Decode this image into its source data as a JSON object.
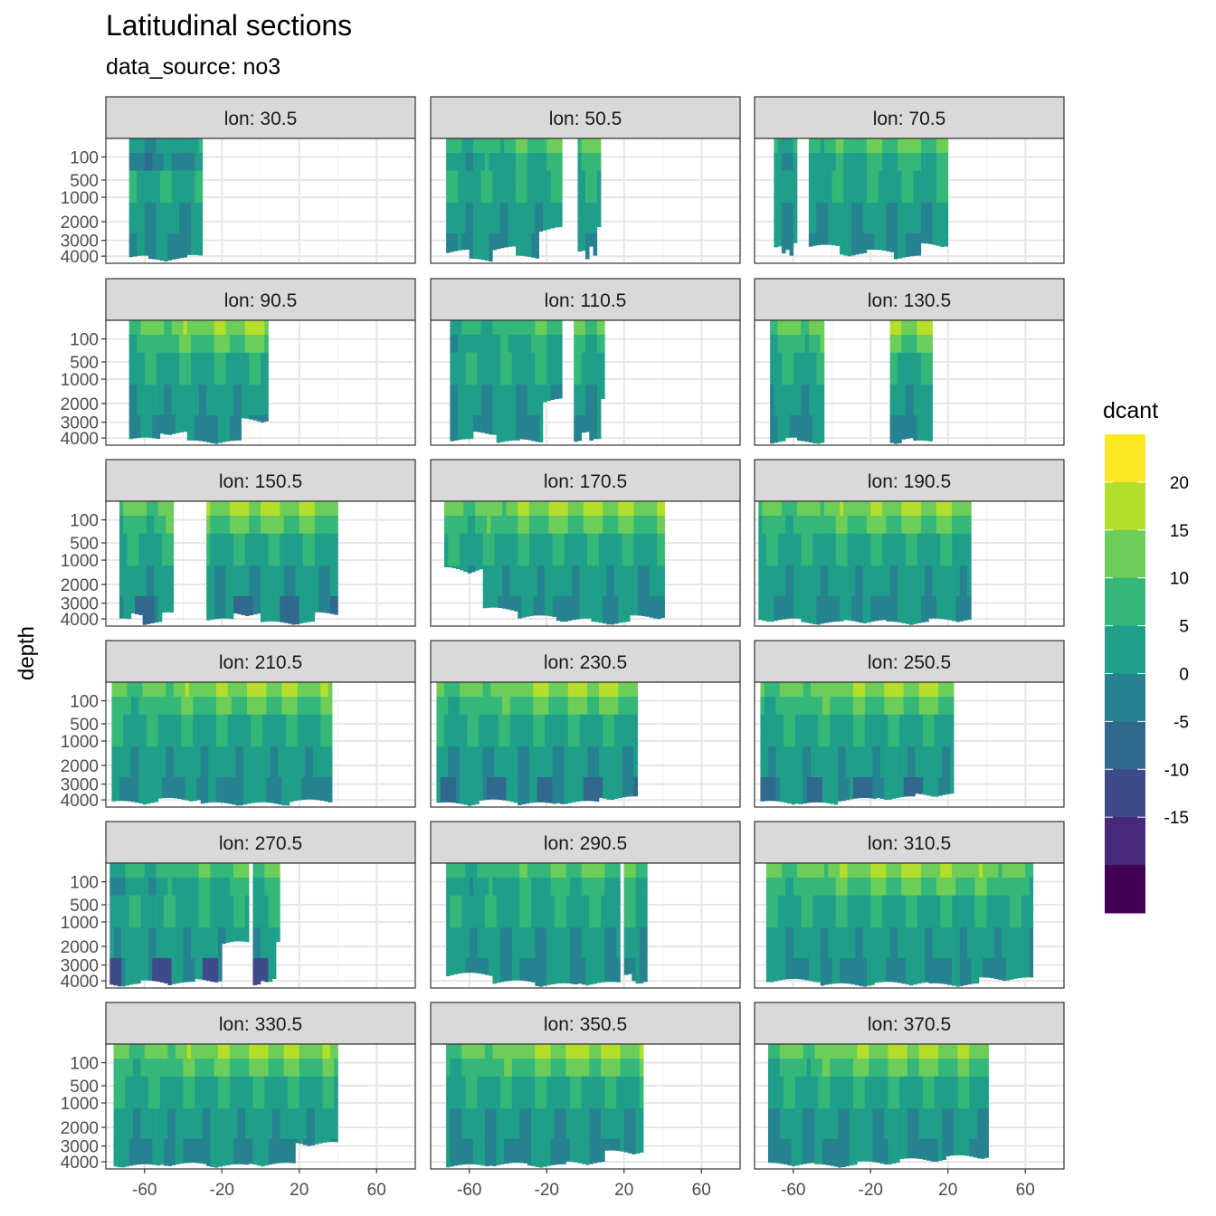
{
  "chart_data": {
    "type": "heatmap",
    "title": "Latitudinal sections",
    "subtitle": "data_source:  no3",
    "ylabel": "depth",
    "xlabel": "",
    "x_ticks": [
      -60,
      -20,
      20,
      60
    ],
    "x_tick_labels": [
      "-60",
      "-20",
      "20",
      "60"
    ],
    "xlim": [
      -80,
      80
    ],
    "y_ticks": [
      100,
      500,
      1000,
      2000,
      3000,
      4000
    ],
    "y_tick_labels": [
      "100",
      "500",
      "1000",
      "2000",
      "3000",
      "4000"
    ],
    "ylim": [
      0,
      4500
    ],
    "y_scale": "reversed sqrt",
    "grid": true,
    "legend": {
      "title": "dcant",
      "position": "right",
      "breaks": [
        20,
        15,
        10,
        5,
        0,
        -5,
        -10,
        -15
      ],
      "labels": [
        "20",
        "15",
        "10",
        "5",
        "0",
        "-5",
        "-10",
        "-15"
      ],
      "colors": [
        "#FDE725",
        "#B4DE2C",
        "#6DCD59",
        "#35B779",
        "#1F9E89",
        "#26828E",
        "#31688E",
        "#3E4A89",
        "#482878",
        "#440154"
      ]
    },
    "panels": [
      {
        "label": "lon: 30.5",
        "coverage": [
          [
            -68,
            -30
          ]
        ],
        "bottom": [
          4200,
          4400,
          4300,
          4150
        ],
        "surface_max": 10,
        "deep_min": -5
      },
      {
        "label": "lon: 50.5",
        "coverage": [
          [
            -72,
            -12
          ],
          [
            -4,
            8
          ]
        ],
        "bottom": [
          3800,
          4400,
          3600,
          4200,
          2500
        ],
        "surface_max": 15,
        "deep_min": -5
      },
      {
        "label": "lon: 70.5",
        "coverage": [
          [
            -70,
            -58
          ],
          [
            -52,
            20
          ]
        ],
        "bottom": [
          3500,
          4000,
          3800,
          4200,
          3400
        ],
        "surface_max": 15,
        "deep_min": -5
      },
      {
        "label": "lon: 90.5",
        "coverage": [
          [
            -68,
            4
          ]
        ],
        "bottom": [
          4200,
          3800,
          4400,
          4400,
          3000
        ],
        "surface_max": 20,
        "deep_min": -5
      },
      {
        "label": "lon: 110.5",
        "coverage": [
          [
            -70,
            -12
          ],
          [
            -6,
            10
          ]
        ],
        "bottom": [
          4300,
          3800,
          4400,
          4300,
          2000
        ],
        "surface_max": 15,
        "deep_min": -5
      },
      {
        "label": "lon: 130.5",
        "coverage": [
          [
            -72,
            -44
          ],
          [
            -10,
            12
          ]
        ],
        "bottom": [
          4400,
          4200,
          4400,
          4400
        ],
        "surface_max": 20,
        "deep_min": -5
      },
      {
        "label": "lon: 150.5",
        "coverage": [
          [
            -73,
            -46
          ],
          [
            -28,
            40
          ]
        ],
        "bottom": [
          4200,
          3800,
          4400,
          4400,
          3800
        ],
        "surface_max": 20,
        "deep_min": -10
      },
      {
        "label": "lon: 170.5",
        "coverage": [
          [
            -73,
            41
          ]
        ],
        "bottom": [
          1500,
          3500,
          4000,
          4200,
          4400,
          4000
        ],
        "surface_max": 20,
        "deep_min": -5
      },
      {
        "label": "lon: 190.5",
        "coverage": [
          [
            -78,
            31
          ]
        ],
        "bottom": [
          4200,
          4400,
          4300,
          4400,
          4200
        ],
        "surface_max": 20,
        "deep_min": -5
      },
      {
        "label": "lon: 210.5",
        "coverage": [
          [
            -77,
            36
          ]
        ],
        "bottom": [
          4300,
          4100,
          4400,
          4400,
          4200
        ],
        "surface_max": 20,
        "deep_min": -5
      },
      {
        "label": "lon: 230.5",
        "coverage": [
          [
            -77,
            26
          ]
        ],
        "bottom": [
          4400,
          4200,
          4400,
          4300,
          4000
        ],
        "surface_max": 20,
        "deep_min": -10
      },
      {
        "label": "lon: 250.5",
        "coverage": [
          [
            -77,
            23
          ]
        ],
        "bottom": [
          4300,
          4400,
          4100,
          4000,
          3800
        ],
        "surface_max": 20,
        "deep_min": -10
      },
      {
        "label": "lon: 270.5",
        "coverage": [
          [
            -78,
            -6
          ],
          [
            -4,
            10
          ]
        ],
        "bottom": [
          4400,
          4200,
          4300,
          4100,
          2000
        ],
        "surface_max": 15,
        "deep_min": -15
      },
      {
        "label": "lon: 290.5",
        "coverage": [
          [
            -72,
            17
          ],
          [
            20,
            32
          ]
        ],
        "bottom": [
          3700,
          4200,
          4400,
          4300
        ],
        "surface_max": 15,
        "deep_min": -5
      },
      {
        "label": "lon: 310.5",
        "coverage": [
          [
            -74,
            63
          ]
        ],
        "bottom": [
          4100,
          4400,
          4300,
          4400,
          4000
        ],
        "surface_max": 20,
        "deep_min": -5
      },
      {
        "label": "lon: 330.5",
        "coverage": [
          [
            -76,
            40
          ]
        ],
        "bottom": [
          4400,
          4300,
          4400,
          4300,
          3000
        ],
        "surface_max": 20,
        "deep_min": -5
      },
      {
        "label": "lon: 350.5",
        "coverage": [
          [
            -72,
            30
          ]
        ],
        "bottom": [
          4400,
          4300,
          4400,
          4200,
          3500
        ],
        "surface_max": 20,
        "deep_min": -5
      },
      {
        "label": "lon: 370.5",
        "coverage": [
          [
            -73,
            40
          ]
        ],
        "bottom": [
          4300,
          4400,
          4200,
          4000,
          3800
        ],
        "surface_max": 20,
        "deep_min": -5
      }
    ]
  }
}
